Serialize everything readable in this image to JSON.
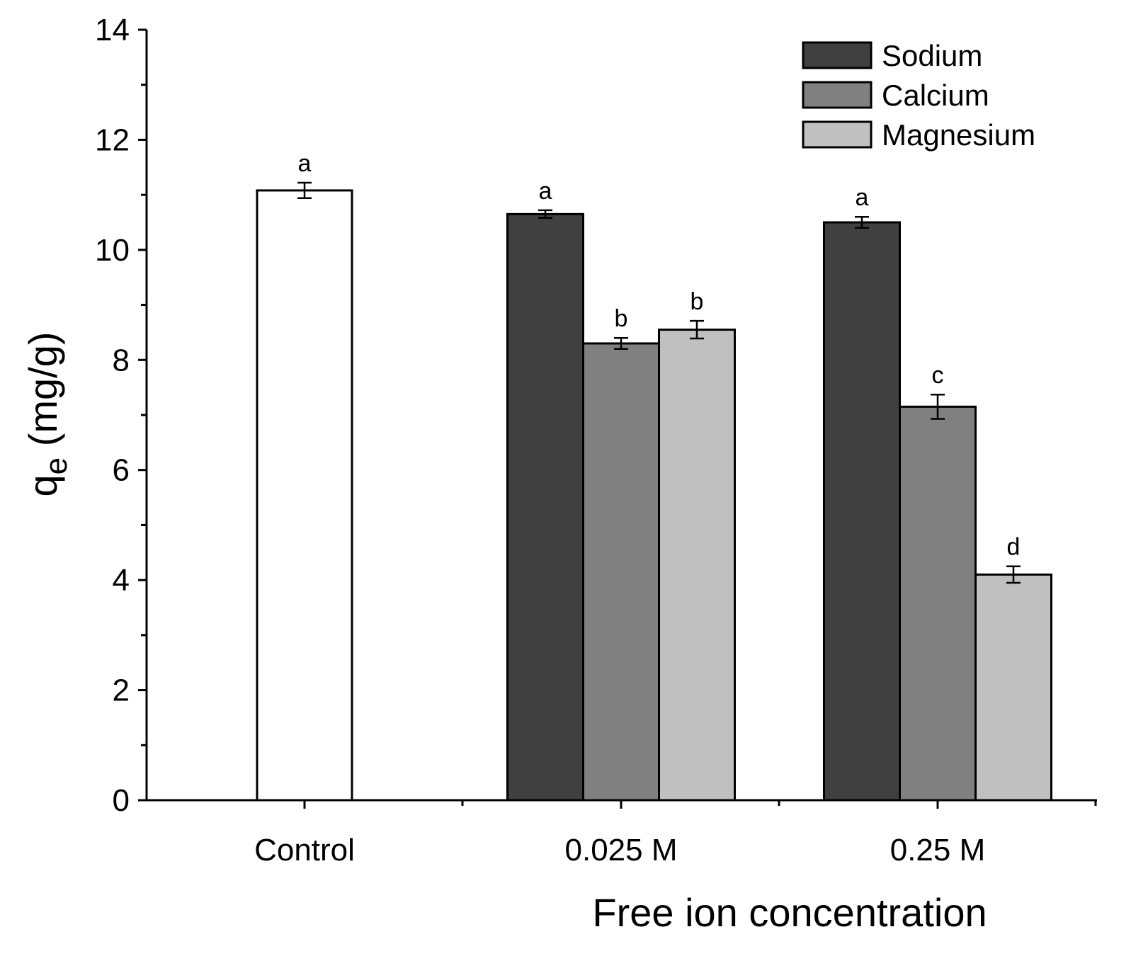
{
  "chart_data": {
    "type": "bar",
    "xlabel": "Free ion concentration",
    "ylabel_main": "q",
    "ylabel_sub": "e",
    "ylabel_unit": " (mg/g)",
    "ylim": [
      0,
      14
    ],
    "yticks": [
      "0",
      "2",
      "4",
      "6",
      "8",
      "10",
      "12",
      "14"
    ],
    "categories": [
      "Control",
      "0.025 M",
      "0.25 M"
    ],
    "control": {
      "value": 11.08,
      "error": 0.14,
      "sig": "a",
      "color": "#ffffff"
    },
    "series": [
      {
        "name": "Sodium",
        "color": "#404040",
        "values": [
          null,
          10.65,
          10.5
        ],
        "errors": [
          null,
          0.07,
          0.1
        ],
        "sig": [
          null,
          "a",
          "a"
        ]
      },
      {
        "name": "Calcium",
        "color": "#808080",
        "values": [
          null,
          8.3,
          7.15
        ],
        "errors": [
          null,
          0.1,
          0.22
        ],
        "sig": [
          null,
          "b",
          "c"
        ]
      },
      {
        "name": "Magnesium",
        "color": "#c0c0c0",
        "values": [
          null,
          8.55,
          4.1
        ],
        "errors": [
          null,
          0.16,
          0.15
        ],
        "sig": [
          null,
          "b",
          "d"
        ]
      }
    ],
    "legend_position": "top-right"
  }
}
